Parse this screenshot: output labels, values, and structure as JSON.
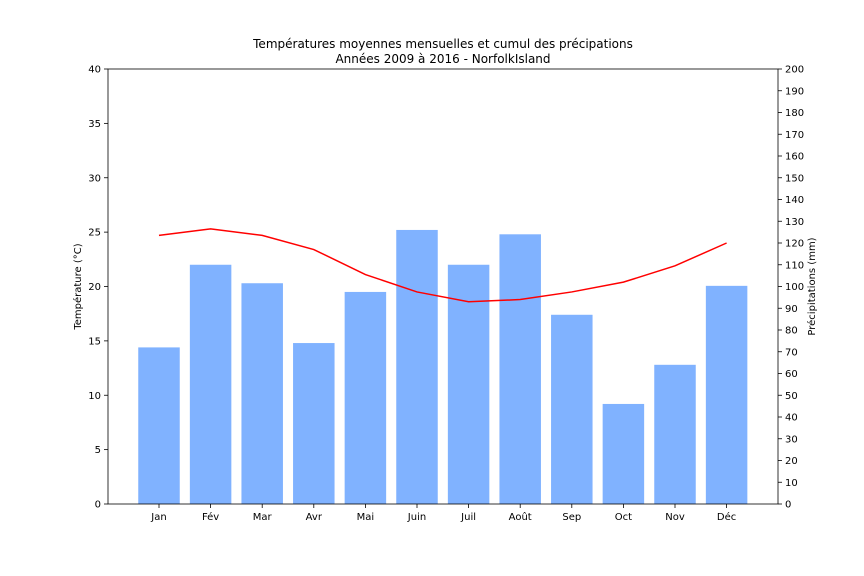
{
  "chart_data": {
    "type": "bar+line",
    "title": "Températures moyennes mensuelles et cumul des précipations",
    "subtitle": "Années 2009 à 2016 - NorfolkIsland",
    "categories": [
      "Jan",
      "Fév",
      "Mar",
      "Avr",
      "Mai",
      "Juin",
      "Juil",
      "Août",
      "Sep",
      "Oct",
      "Nov",
      "Déc"
    ],
    "bar_series": {
      "axis": "right",
      "values": [
        72,
        110,
        101.5,
        74,
        97.5,
        126,
        110,
        124,
        87,
        46,
        64,
        100.3
      ],
      "color": "#80b2ff"
    },
    "line_series": {
      "axis": "left",
      "values": [
        24.7,
        25.3,
        24.7,
        23.4,
        21.1,
        19.5,
        18.6,
        18.8,
        19.5,
        20.4,
        21.9,
        24.0
      ],
      "color": "#ff0000"
    },
    "left_axis": {
      "label": "Température (°C)",
      "range": [
        0,
        40
      ],
      "ticks": [
        0,
        5,
        10,
        15,
        20,
        25,
        30,
        35,
        40
      ]
    },
    "right_axis": {
      "label": "Précipitations (mm)",
      "range": [
        0,
        200
      ],
      "ticks": [
        0,
        10,
        20,
        30,
        40,
        50,
        60,
        70,
        80,
        90,
        100,
        110,
        120,
        130,
        140,
        150,
        160,
        170,
        180,
        190,
        200
      ]
    },
    "grid": false,
    "legend": "none"
  }
}
